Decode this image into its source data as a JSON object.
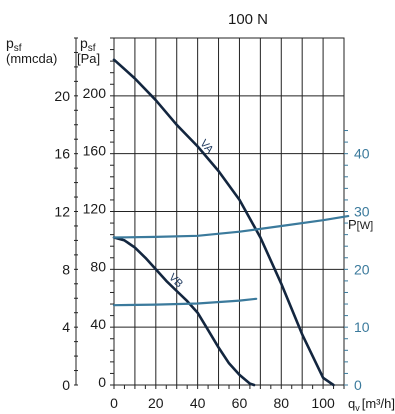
{
  "chart_data": {
    "type": "line",
    "title": "100 N",
    "x_axis": {
      "label_main": "q",
      "label_sub": "v",
      "label_unit": "[m³/h]",
      "ticks": [
        "0",
        "20",
        "40",
        "60",
        "80",
        "100"
      ],
      "xlim": [
        0,
        110
      ]
    },
    "y_axis_pa": {
      "label_main": "p",
      "label_sub": "sf",
      "label_unit": "[Pa]",
      "ticks": [
        "0",
        "40",
        "80",
        "120",
        "160",
        "200"
      ],
      "ylim": [
        0,
        240
      ]
    },
    "y_axis_mmcda": {
      "label_main": "p",
      "label_sub": "sf",
      "label_unit": "(mmcda)",
      "ticks": [
        "0",
        "4",
        "8",
        "12",
        "16",
        "20"
      ]
    },
    "y_axis_power": {
      "label_main": "P",
      "label_unit": "[W]",
      "ticks": [
        "0",
        "10",
        "20",
        "30",
        "40"
      ]
    },
    "series": [
      {
        "name": "VA",
        "axis": "pa",
        "color": "#13263f",
        "x": [
          0,
          10,
          20,
          30,
          40,
          50,
          60,
          70,
          80,
          90,
          100,
          105
        ],
        "y": [
          225,
          212,
          197,
          180,
          165,
          148,
          128,
          102,
          70,
          35,
          5,
          0
        ]
      },
      {
        "name": "VB",
        "axis": "pa",
        "color": "#13263f",
        "x": [
          0,
          5,
          10,
          15,
          20,
          25,
          30,
          35,
          40,
          45,
          50,
          55,
          60,
          65,
          67
        ],
        "y": [
          102,
          100,
          95,
          88,
          80,
          72,
          65,
          58,
          50,
          38,
          26,
          15,
          7,
          1,
          0
        ]
      },
      {
        "name": "",
        "axis": "power",
        "color": "#3b7a9c",
        "x": [
          0,
          20,
          40,
          60,
          80,
          100,
          112
        ],
        "y": [
          25.5,
          25.6,
          25.8,
          26.5,
          27.5,
          28.5,
          29.2
        ]
      },
      {
        "name": "",
        "axis": "power",
        "color": "#3b7a9c",
        "x": [
          0,
          20,
          40,
          60,
          68
        ],
        "y": [
          13.8,
          13.9,
          14.1,
          14.6,
          14.9
        ]
      }
    ]
  }
}
